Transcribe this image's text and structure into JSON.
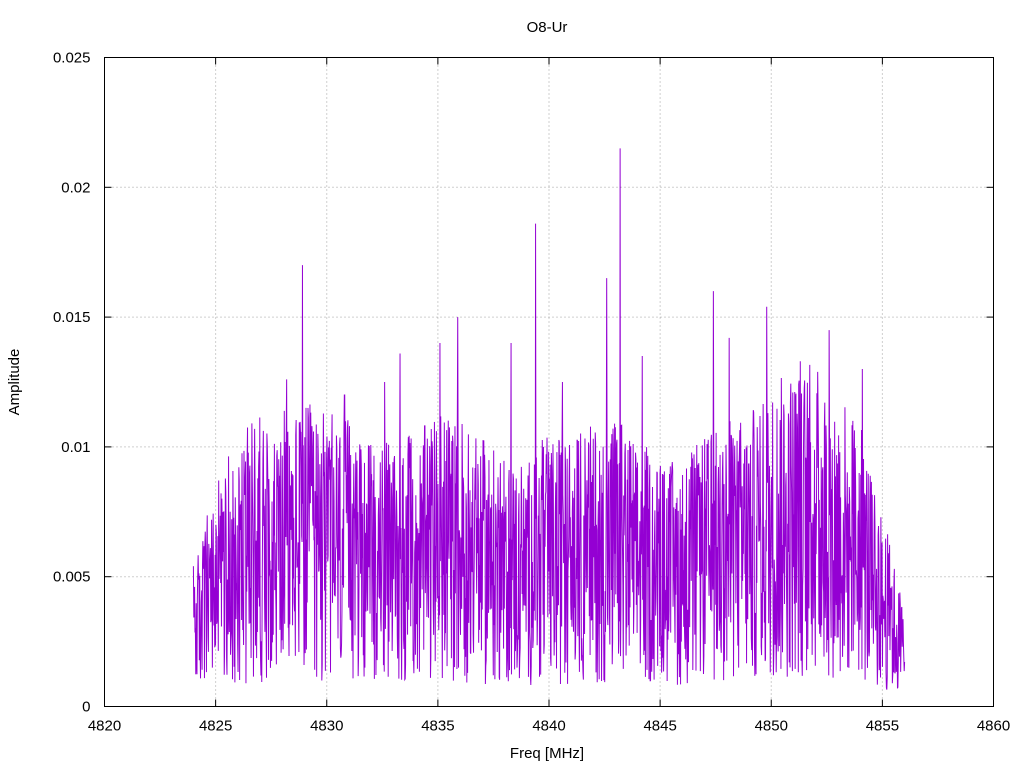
{
  "chart_data": {
    "type": "line",
    "title": "O8-Ur",
    "xlabel": "Freq [MHz]",
    "ylabel": "Amplitude",
    "xlim": [
      4820,
      4860
    ],
    "ylim": [
      0,
      0.025
    ],
    "x_ticks": [
      "4820",
      "4825",
      "4830",
      "4835",
      "4840",
      "4845",
      "4850",
      "4855",
      "4860"
    ],
    "y_ticks": [
      "0",
      "0.005",
      "0.01",
      "0.015",
      "0.02",
      "0.025"
    ],
    "grid": true,
    "series_color": "#9400d3",
    "series": [
      {
        "x_start": 4824.0,
        "x_end": 4856.0,
        "envelope": [
          [
            4824.0,
            0.003
          ],
          [
            4825.0,
            0.0045
          ],
          [
            4826.0,
            0.0055
          ],
          [
            4827.0,
            0.006
          ],
          [
            4828.0,
            0.006
          ],
          [
            4829.0,
            0.0062
          ],
          [
            4830.0,
            0.006
          ],
          [
            4831.0,
            0.0058
          ],
          [
            4832.0,
            0.0055
          ],
          [
            4833.0,
            0.0055
          ],
          [
            4834.0,
            0.0055
          ],
          [
            4835.0,
            0.006
          ],
          [
            4836.0,
            0.006
          ],
          [
            4837.0,
            0.0055
          ],
          [
            4838.0,
            0.005
          ],
          [
            4839.0,
            0.0052
          ],
          [
            4840.0,
            0.0055
          ],
          [
            4841.0,
            0.0055
          ],
          [
            4842.0,
            0.0058
          ],
          [
            4843.0,
            0.006
          ],
          [
            4844.0,
            0.0055
          ],
          [
            4845.0,
            0.005
          ],
          [
            4846.0,
            0.005
          ],
          [
            4847.0,
            0.0055
          ],
          [
            4848.0,
            0.0058
          ],
          [
            4849.0,
            0.006
          ],
          [
            4850.0,
            0.0065
          ],
          [
            4851.0,
            0.007
          ],
          [
            4852.0,
            0.007
          ],
          [
            4853.0,
            0.0065
          ],
          [
            4854.0,
            0.0058
          ],
          [
            4855.0,
            0.004
          ],
          [
            4856.0,
            0.002
          ]
        ],
        "peaks": [
          [
            4828.2,
            0.0126
          ],
          [
            4828.9,
            0.017
          ],
          [
            4829.6,
            0.0105
          ],
          [
            4830.8,
            0.012
          ],
          [
            4832.6,
            0.0125
          ],
          [
            4833.3,
            0.0136
          ],
          [
            4835.1,
            0.014
          ],
          [
            4835.9,
            0.015
          ],
          [
            4838.3,
            0.014
          ],
          [
            4839.4,
            0.0186
          ],
          [
            4840.6,
            0.0125
          ],
          [
            4842.6,
            0.0165
          ],
          [
            4843.2,
            0.0215
          ],
          [
            4844.2,
            0.0135
          ],
          [
            4847.4,
            0.016
          ],
          [
            4848.1,
            0.0142
          ],
          [
            4849.8,
            0.0154
          ],
          [
            4851.3,
            0.0133
          ],
          [
            4852.6,
            0.0145
          ],
          [
            4854.1,
            0.013
          ]
        ]
      }
    ]
  }
}
